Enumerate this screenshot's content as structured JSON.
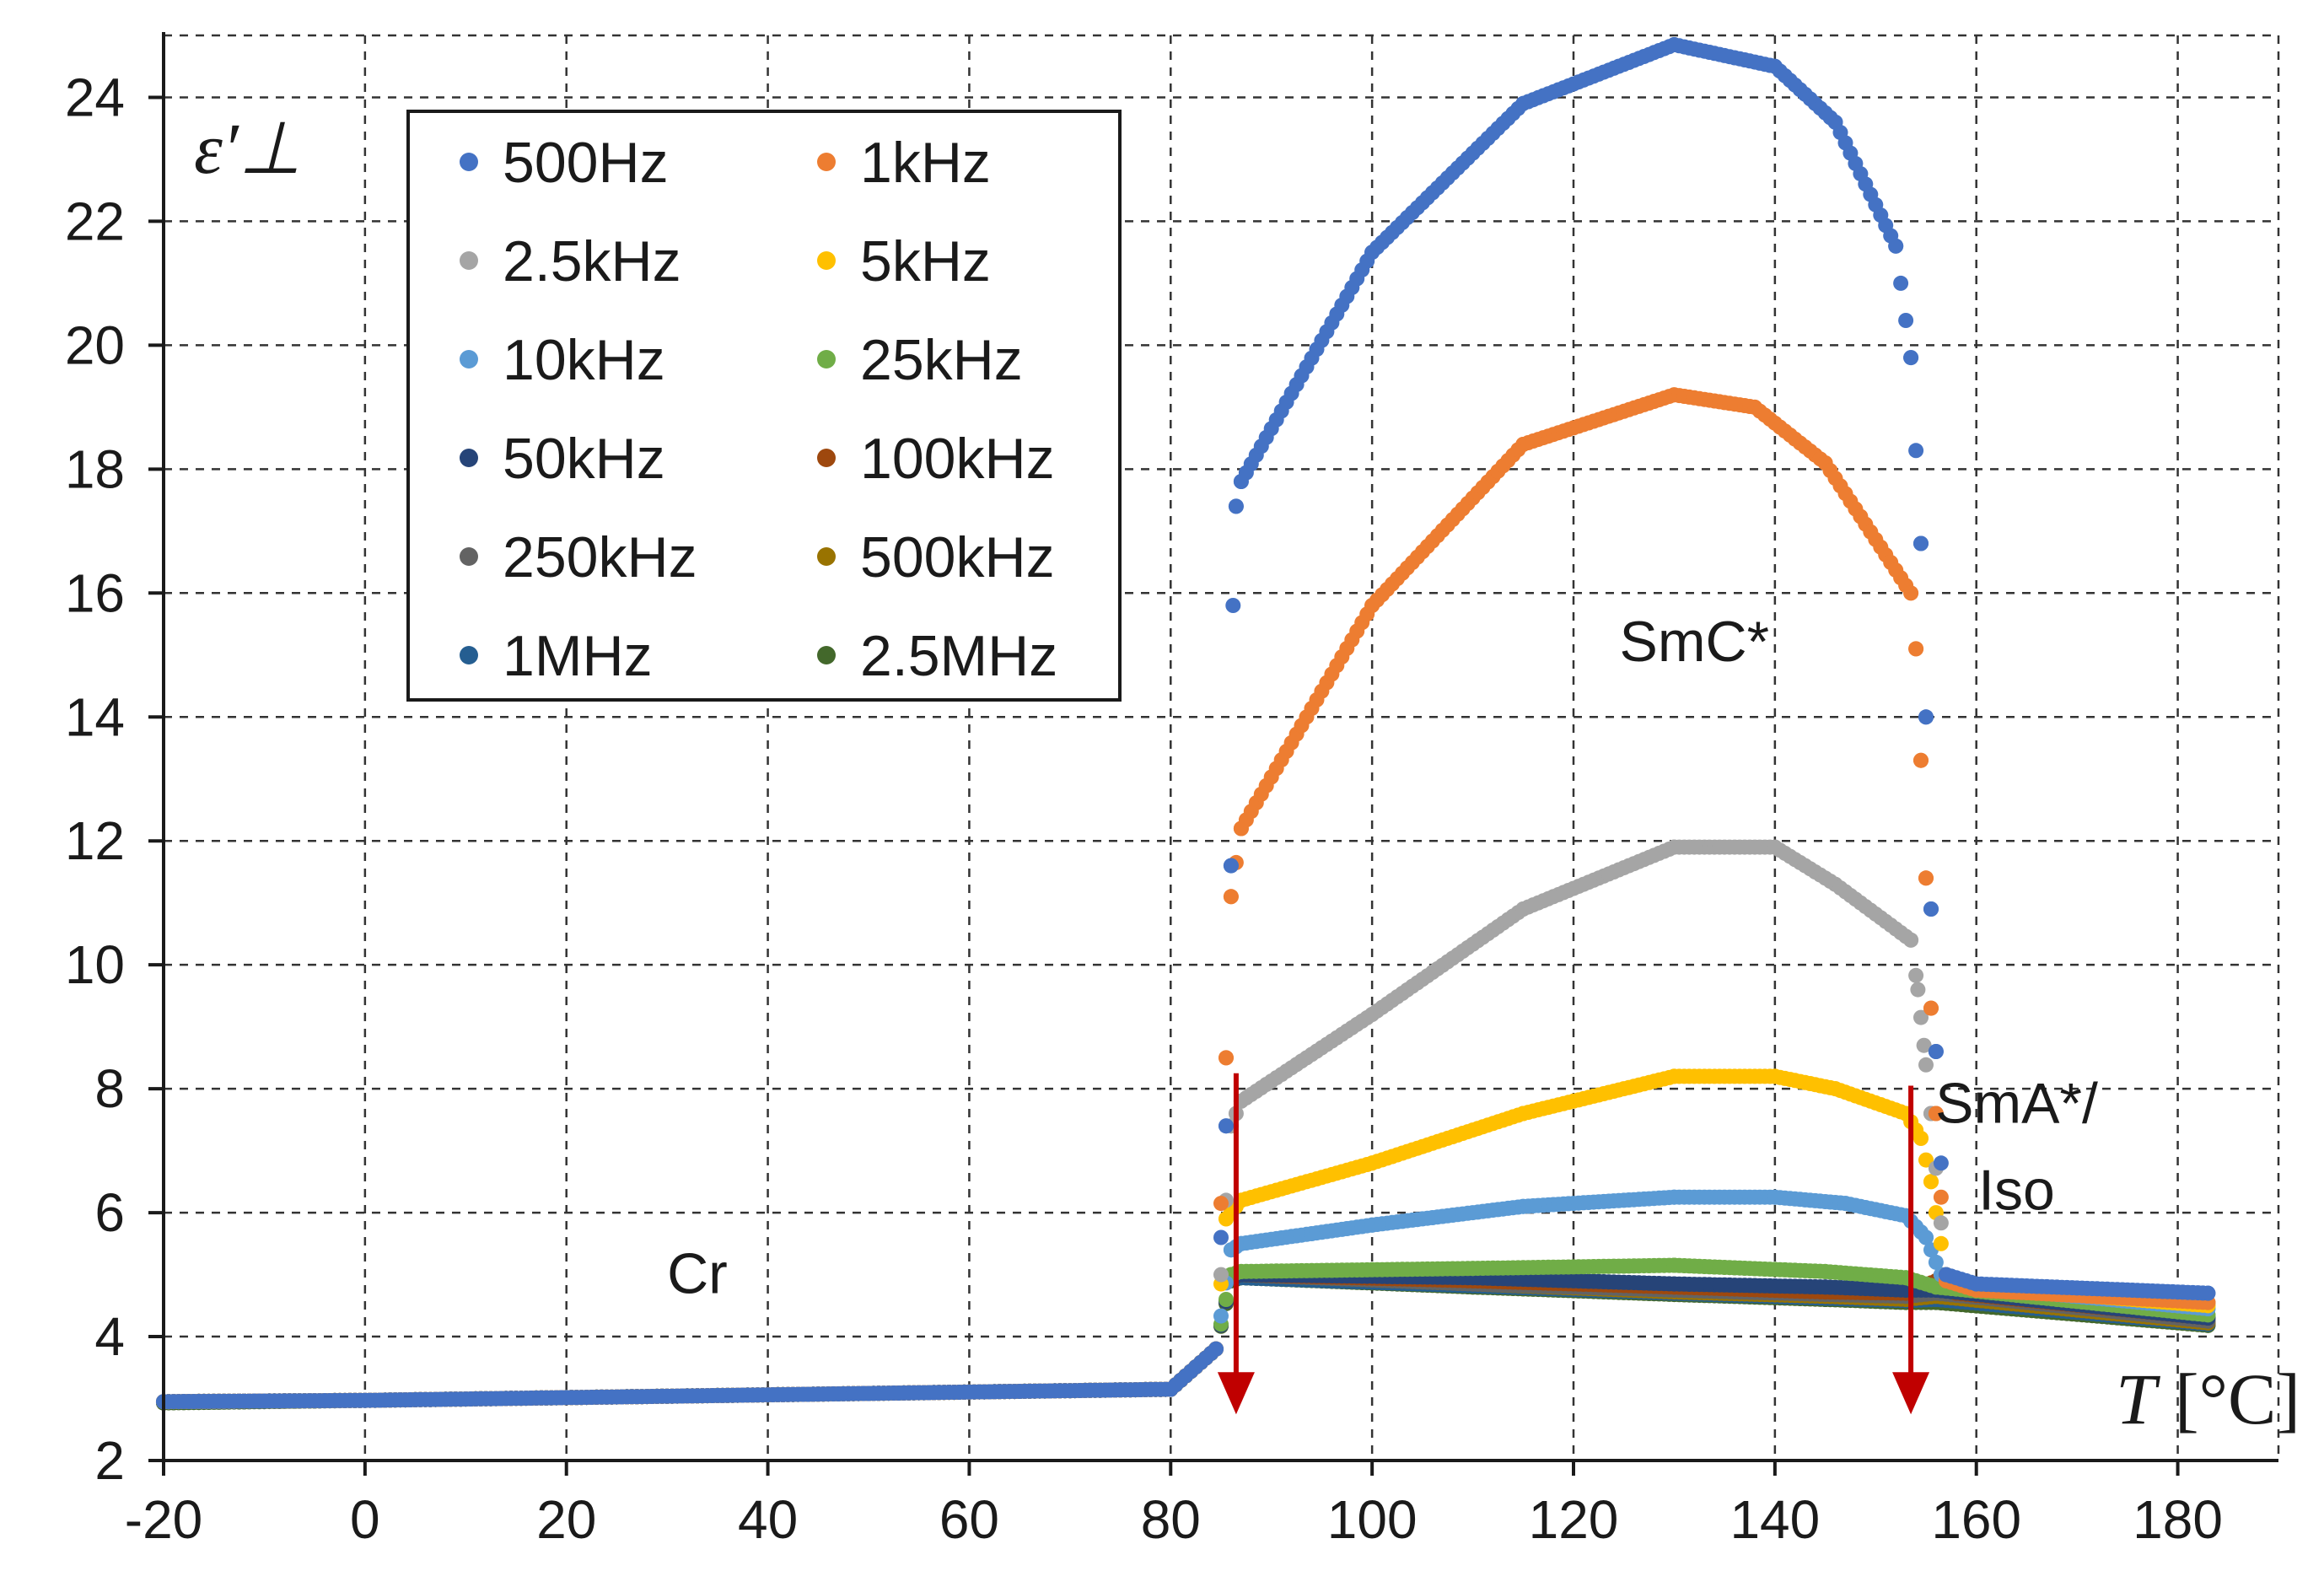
{
  "chart_data": {
    "type": "scatter",
    "title": "",
    "xlabel_var": "T",
    "xlabel_unit": "[°C]",
    "ylabel": "ε′⊥",
    "xlim": [
      -20,
      190
    ],
    "ylim": [
      2,
      25
    ],
    "grid": true,
    "legend_position": "top-left",
    "x_ticks": [
      -20,
      0,
      20,
      40,
      60,
      80,
      100,
      120,
      140,
      160,
      180
    ],
    "y_ticks": [
      2,
      4,
      6,
      8,
      10,
      12,
      14,
      16,
      18,
      20,
      22,
      24
    ],
    "series": [
      {
        "name": "500Hz",
        "color": "#4472C4",
        "key": [
          [
            -20,
            2.95
          ],
          [
            0,
            2.97
          ],
          [
            80,
            3.15
          ],
          [
            84.5,
            3.8
          ],
          [
            85.5,
            7.4
          ],
          [
            86,
            11.6
          ],
          [
            86.2,
            15.8
          ],
          [
            86.5,
            17.4
          ],
          [
            87,
            17.8
          ],
          [
            100,
            21.5
          ],
          [
            115,
            23.9
          ],
          [
            130,
            24.85
          ],
          [
            140,
            24.5
          ],
          [
            146,
            23.6
          ],
          [
            152,
            21.6
          ],
          [
            153.5,
            19.8
          ],
          [
            154.5,
            16.8
          ],
          [
            155,
            14.0
          ],
          [
            155.5,
            10.9
          ],
          [
            156,
            8.6
          ],
          [
            157,
            5.0
          ],
          [
            160,
            4.85
          ],
          [
            183,
            4.7
          ]
        ]
      },
      {
        "name": "1kHz",
        "color": "#ED7D31",
        "key": [
          [
            -20,
            2.95
          ],
          [
            0,
            2.97
          ],
          [
            80,
            3.15
          ],
          [
            84.5,
            3.8
          ],
          [
            85.5,
            8.5
          ],
          [
            86,
            11.1
          ],
          [
            87,
            12.2
          ],
          [
            100,
            15.8
          ],
          [
            115,
            18.4
          ],
          [
            130,
            19.2
          ],
          [
            138,
            19.0
          ],
          [
            145,
            18.1
          ],
          [
            153.5,
            16.0
          ],
          [
            154,
            15.1
          ],
          [
            154.5,
            13.3
          ],
          [
            155,
            11.4
          ],
          [
            155.5,
            9.3
          ],
          [
            156,
            7.6
          ],
          [
            157,
            4.9
          ],
          [
            160,
            4.75
          ],
          [
            183,
            4.55
          ]
        ]
      },
      {
        "name": "2.5kHz",
        "color": "#A5A5A5",
        "key": [
          [
            -20,
            2.95
          ],
          [
            0,
            2.97
          ],
          [
            80,
            3.15
          ],
          [
            84.5,
            3.8
          ],
          [
            86,
            7.4
          ],
          [
            87,
            7.8
          ],
          [
            100,
            9.2
          ],
          [
            115,
            10.9
          ],
          [
            130,
            11.9
          ],
          [
            140,
            11.9
          ],
          [
            146,
            11.3
          ],
          [
            153.5,
            10.4
          ],
          [
            154.2,
            9.6
          ],
          [
            154.8,
            8.7
          ],
          [
            155.5,
            7.6
          ],
          [
            157,
            4.95
          ],
          [
            160,
            4.8
          ],
          [
            183,
            4.55
          ]
        ]
      },
      {
        "name": "5kHz",
        "color": "#FFC000",
        "key": [
          [
            -20,
            2.95
          ],
          [
            0,
            2.97
          ],
          [
            80,
            3.15
          ],
          [
            84.5,
            3.8
          ],
          [
            85.5,
            5.9
          ],
          [
            87,
            6.2
          ],
          [
            100,
            6.8
          ],
          [
            115,
            7.6
          ],
          [
            130,
            8.2
          ],
          [
            140,
            8.2
          ],
          [
            146,
            8.0
          ],
          [
            153,
            7.6
          ],
          [
            154.5,
            7.2
          ],
          [
            155.5,
            6.5
          ],
          [
            157,
            5.0
          ],
          [
            160,
            4.8
          ],
          [
            183,
            4.5
          ]
        ]
      },
      {
        "name": "10kHz",
        "color": "#5B9BD5",
        "key": [
          [
            -20,
            2.95
          ],
          [
            0,
            2.97
          ],
          [
            80,
            3.15
          ],
          [
            84.5,
            3.8
          ],
          [
            86,
            5.4
          ],
          [
            87,
            5.5
          ],
          [
            100,
            5.8
          ],
          [
            115,
            6.1
          ],
          [
            130,
            6.25
          ],
          [
            140,
            6.25
          ],
          [
            147,
            6.15
          ],
          [
            153,
            5.95
          ],
          [
            155,
            5.6
          ],
          [
            156.5,
            5.0
          ],
          [
            160,
            4.8
          ],
          [
            183,
            4.45
          ]
        ]
      },
      {
        "name": "25kHz",
        "color": "#70AD47",
        "key": [
          [
            -20,
            2.95
          ],
          [
            0,
            2.97
          ],
          [
            80,
            3.15
          ],
          [
            84.5,
            3.8
          ],
          [
            86,
            5.0
          ],
          [
            87,
            5.05
          ],
          [
            110,
            5.1
          ],
          [
            130,
            5.15
          ],
          [
            145,
            5.05
          ],
          [
            153,
            4.95
          ],
          [
            156,
            4.8
          ],
          [
            183,
            4.35
          ]
        ]
      },
      {
        "name": "50kHz",
        "color": "#264478",
        "key": [
          [
            -20,
            2.95
          ],
          [
            0,
            2.97
          ],
          [
            80,
            3.15
          ],
          [
            84.5,
            3.8
          ],
          [
            86,
            4.95
          ],
          [
            87,
            5.0
          ],
          [
            110,
            4.95
          ],
          [
            130,
            4.85
          ],
          [
            145,
            4.8
          ],
          [
            153,
            4.75
          ],
          [
            156,
            4.75
          ],
          [
            183,
            4.3
          ]
        ]
      },
      {
        "name": "100kHz",
        "color": "#9E480E",
        "key": [
          [
            -20,
            2.95
          ],
          [
            0,
            2.97
          ],
          [
            80,
            3.15
          ],
          [
            84.5,
            3.8
          ],
          [
            86,
            4.95
          ],
          [
            87,
            5.0
          ],
          [
            110,
            4.9
          ],
          [
            130,
            4.8
          ],
          [
            145,
            4.72
          ],
          [
            153,
            4.7
          ],
          [
            156,
            4.9
          ],
          [
            158,
            4.7
          ],
          [
            183,
            4.3
          ]
        ]
      },
      {
        "name": "250kHz",
        "color": "#636363",
        "key": [
          [
            -20,
            2.95
          ],
          [
            0,
            2.97
          ],
          [
            80,
            3.15
          ],
          [
            84.5,
            3.8
          ],
          [
            86,
            4.95
          ],
          [
            87,
            5.0
          ],
          [
            110,
            4.85
          ],
          [
            130,
            4.75
          ],
          [
            145,
            4.68
          ],
          [
            153,
            4.65
          ],
          [
            156,
            4.7
          ],
          [
            183,
            4.25
          ]
        ]
      },
      {
        "name": "500kHz",
        "color": "#997300",
        "key": [
          [
            -20,
            2.95
          ],
          [
            0,
            2.97
          ],
          [
            80,
            3.15
          ],
          [
            84.5,
            3.8
          ],
          [
            86,
            4.95
          ],
          [
            87,
            5.0
          ],
          [
            110,
            4.85
          ],
          [
            130,
            4.72
          ],
          [
            145,
            4.65
          ],
          [
            153,
            4.6
          ],
          [
            156,
            4.65
          ],
          [
            183,
            4.22
          ]
        ]
      },
      {
        "name": "1MHz",
        "color": "#255E91",
        "key": [
          [
            -20,
            2.95
          ],
          [
            0,
            2.97
          ],
          [
            80,
            3.15
          ],
          [
            84.5,
            3.8
          ],
          [
            86,
            4.95
          ],
          [
            87,
            4.95
          ],
          [
            110,
            4.82
          ],
          [
            130,
            4.7
          ],
          [
            145,
            4.62
          ],
          [
            153,
            4.58
          ],
          [
            156,
            4.6
          ],
          [
            183,
            4.2
          ]
        ]
      },
      {
        "name": "2.5MHz",
        "color": "#43682B",
        "key": [
          [
            -20,
            2.93
          ],
          [
            0,
            2.97
          ],
          [
            80,
            3.15
          ],
          [
            84.5,
            3.8
          ],
          [
            86,
            4.9
          ],
          [
            87,
            4.95
          ],
          [
            110,
            4.8
          ],
          [
            130,
            4.68
          ],
          [
            145,
            4.6
          ],
          [
            153,
            4.55
          ],
          [
            156,
            4.55
          ],
          [
            183,
            4.18
          ]
        ]
      }
    ],
    "annotations": [
      {
        "text": "SmC*",
        "x": 132,
        "y": 14.9
      },
      {
        "text": "Cr",
        "x": 33,
        "y": 4.7
      },
      {
        "text": "SmA*/",
        "x": 164,
        "y": 7.45
      },
      {
        "text": "Iso",
        "x": 164,
        "y": 6.05
      }
    ],
    "arrows": [
      {
        "x": 86.5,
        "y_from": 8.25,
        "y_to": 2.8,
        "color": "#C00000"
      },
      {
        "x": 153.5,
        "y_from": 8.05,
        "y_to": 2.8,
        "color": "#C00000"
      }
    ]
  }
}
